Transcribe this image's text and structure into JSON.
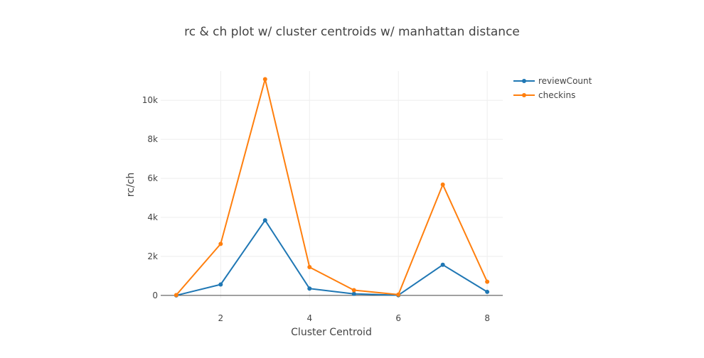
{
  "chart_data": {
    "type": "line",
    "title": "rc & ch plot w/ cluster centroids w/ manhattan distance",
    "xlabel": "Cluster Centroid",
    "ylabel": "rc/ch",
    "xlim": [
      0.65,
      8.35
    ],
    "ylim": [
      -150,
      11500
    ],
    "x_ticks": [
      2,
      4,
      6,
      8
    ],
    "x_tick_labels": [
      "2",
      "4",
      "6",
      "8"
    ],
    "y_ticks": [
      0,
      2000,
      4000,
      6000,
      8000,
      10000
    ],
    "y_tick_labels": [
      "0",
      "2k",
      "4k",
      "6k",
      "8k",
      "10k"
    ],
    "grid": true,
    "legend_position": "top-right",
    "x": [
      1,
      2,
      3,
      4,
      5,
      6,
      7,
      8
    ],
    "series": [
      {
        "name": "reviewCount",
        "color": "#1f77b4",
        "values": [
          0,
          560,
          3850,
          350,
          80,
          10,
          1570,
          180
        ]
      },
      {
        "name": "checkins",
        "color": "#ff7f0e",
        "values": [
          20,
          2640,
          11080,
          1450,
          270,
          40,
          5680,
          700
        ]
      }
    ]
  }
}
